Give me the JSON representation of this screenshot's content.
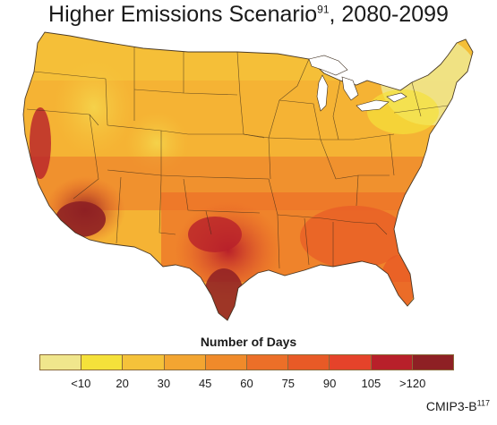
{
  "title": {
    "text": "Higher Emissions Scenario",
    "superscript": "91",
    "suffix": ", 2080-2099"
  },
  "legend": {
    "title": "Number of Days",
    "colors": [
      "#f0e68c",
      "#f5e13a",
      "#f5c23a",
      "#f3a531",
      "#f08a2a",
      "#ec6f28",
      "#e85a26",
      "#e5432a",
      "#b8202a",
      "#8e2024"
    ],
    "ticks": [
      "<10",
      "20",
      "30",
      "45",
      "60",
      "75",
      "90",
      "105",
      ">120"
    ]
  },
  "source": {
    "text": "CMIP3-B",
    "superscript": "117"
  }
}
